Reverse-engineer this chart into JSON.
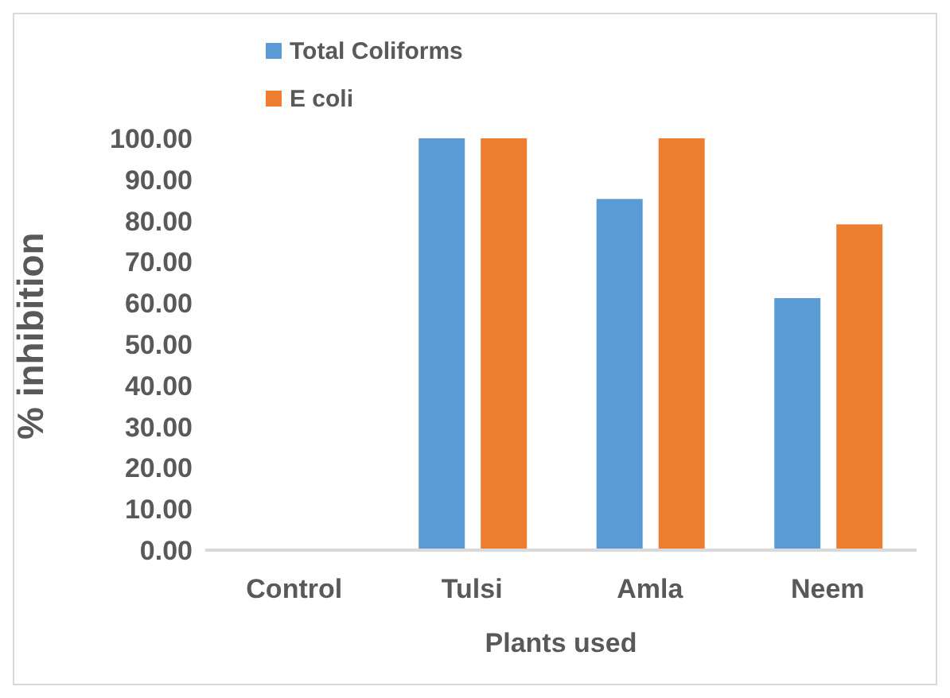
{
  "chart_data": {
    "type": "bar",
    "xlabel": "Plants used",
    "ylabel": "% inhibition",
    "categories": [
      "Control",
      "Tulsi",
      "Amla",
      "Neem"
    ],
    "series": [
      {
        "name": "Total Coliforms",
        "color": "#5b9bd5",
        "values": [
          0,
          100,
          85.3,
          61.2
        ]
      },
      {
        "name": "E coli",
        "color": "#ed7d31",
        "values": [
          0,
          100,
          100,
          79.1
        ]
      }
    ],
    "ylim": [
      0,
      100
    ],
    "yticks": [
      {
        "value": 0,
        "label": "0.00"
      },
      {
        "value": 10,
        "label": "10.00"
      },
      {
        "value": 20,
        "label": "20.00"
      },
      {
        "value": 30,
        "label": "30.00"
      },
      {
        "value": 40,
        "label": "40.00"
      },
      {
        "value": 50,
        "label": "50.00"
      },
      {
        "value": 60,
        "label": "60.00"
      },
      {
        "value": 70,
        "label": "70.00"
      },
      {
        "value": 80,
        "label": "80.00"
      },
      {
        "value": 90,
        "label": "90.00"
      },
      {
        "value": 100,
        "label": "100.00"
      }
    ],
    "grid": false,
    "legend": "top left"
  }
}
